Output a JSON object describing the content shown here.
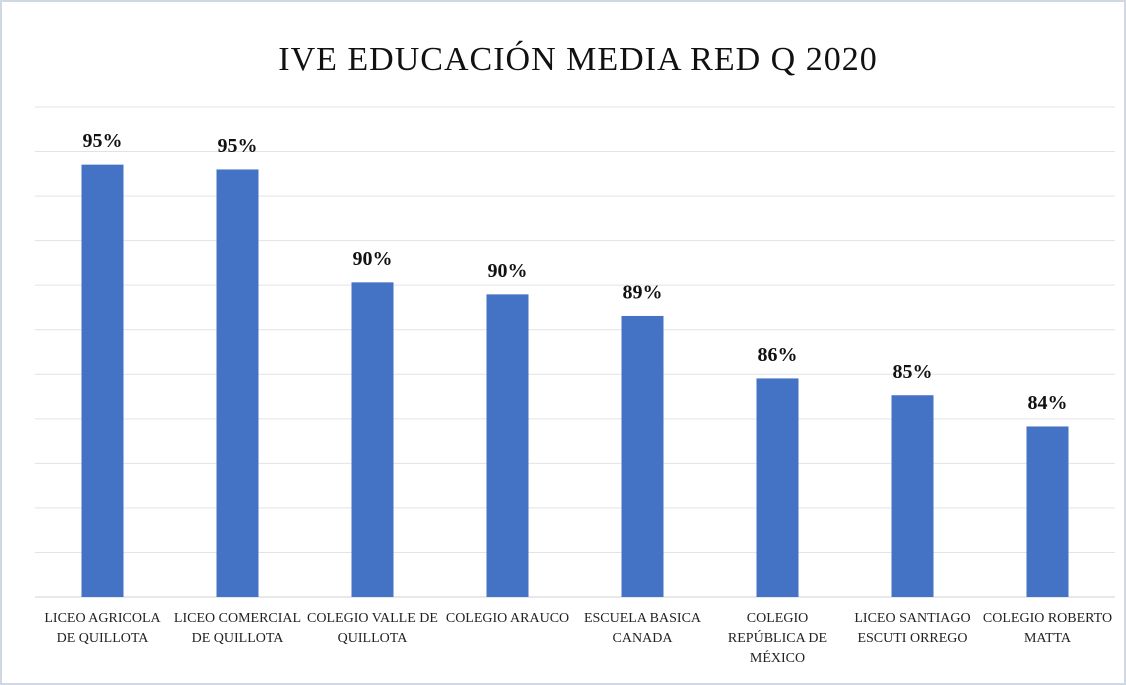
{
  "chart_data": {
    "type": "bar",
    "title": "IVE EDUCACIÓN MEDIA RED Q 2020",
    "categories": [
      "LICEO AGRICOLA DE QUILLOTA",
      "LICEO COMERCIAL DE QUILLOTA",
      "COLEGIO VALLE DE QUILLOTA",
      "COLEGIO ARAUCO",
      "ESCUELA BASICA CANADA",
      "COLEGIO REPÚBLICA DE MÉXICO",
      "LICEO SANTIAGO ESCUTI ORREGO",
      "COLEGIO ROBERTO MATTA"
    ],
    "values": [
      95.0,
      94.8,
      90.1,
      89.6,
      88.7,
      86.1,
      85.4,
      84.1
    ],
    "value_labels": [
      "95%",
      "95%",
      "90%",
      "90%",
      "89%",
      "86%",
      "85%",
      "84%"
    ],
    "color": "#4472c4",
    "ylim": [
      77,
      97.4
    ]
  }
}
